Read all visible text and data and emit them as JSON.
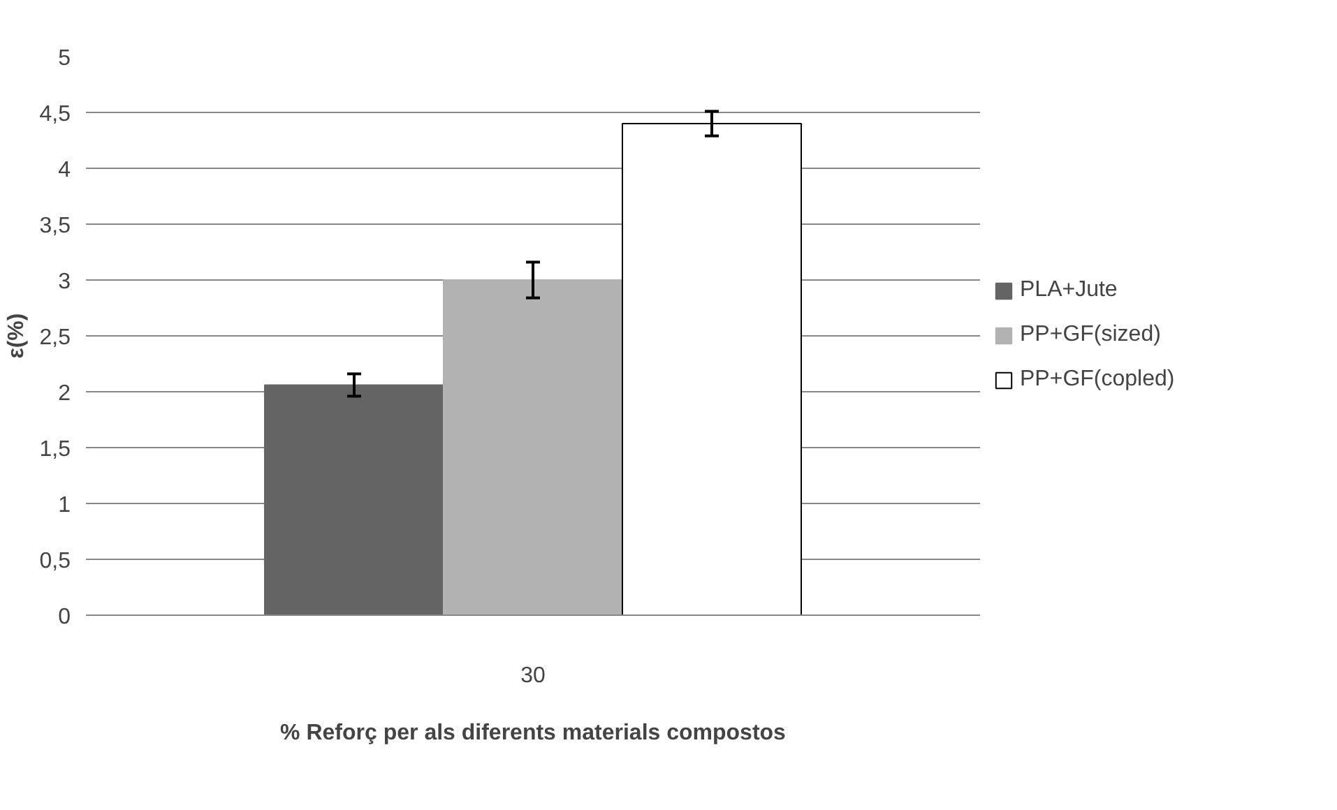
{
  "chart_data": {
    "type": "bar",
    "xlabel": "% Reforç per als diferents materials compostos",
    "ylabel": "ε(%)",
    "categories": [
      "30"
    ],
    "series": [
      {
        "name": "PLA+Jute",
        "color": "#646464",
        "values": [
          2.06
        ],
        "errors": [
          0.1
        ]
      },
      {
        "name": "PP+GF(sized)",
        "color": "#b2b2b2",
        "values": [
          3.0
        ],
        "errors": [
          0.16
        ]
      },
      {
        "name": "PP+GF(copled)",
        "color": "#ffffff",
        "values": [
          4.4
        ],
        "errors": [
          0.11
        ]
      }
    ],
    "ylim": [
      0,
      5
    ],
    "yticks": [
      0,
      {
        "value": 0.5,
        "label": "0,5"
      },
      1,
      {
        "value": 1.5,
        "label": "1,5"
      },
      2,
      {
        "value": 2.5,
        "label": "2,5"
      },
      3,
      {
        "value": 3.5,
        "label": "3,5"
      },
      4,
      {
        "value": 4.5,
        "label": "4,5"
      },
      5
    ],
    "grid": "y",
    "legend": "right"
  }
}
